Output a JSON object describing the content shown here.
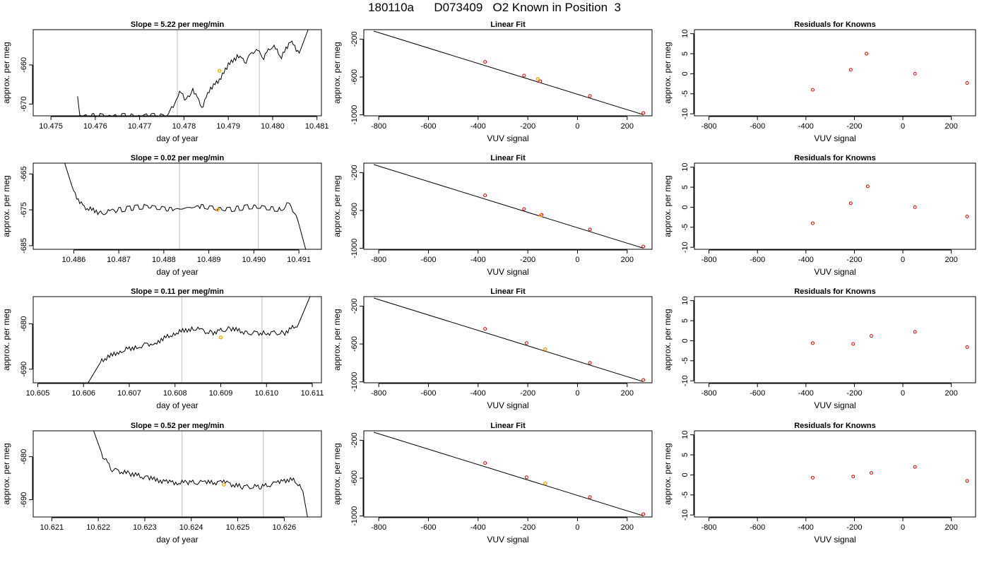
{
  "figure_title": "180110a      D073409   O2 Known in Position  3",
  "colors": {
    "line": "#000000",
    "highlight": "#ffa500",
    "residual": "#dd0000",
    "vline": "#c8c8c8"
  },
  "chart_data": [
    {
      "type": "line",
      "title": "Slope =  5.22  per meg/min",
      "xlabel": "day of year",
      "ylabel": "approx. per meg",
      "xlim": [
        10.4746,
        10.4811
      ],
      "ylim": [
        -673,
        -651
      ],
      "xticks": [
        "10.475",
        "10.476",
        "10.477",
        "10.478",
        "10.479",
        "10.480",
        "10.481"
      ],
      "yticks": [
        "-670",
        "-660"
      ],
      "vlines": [
        10.47785,
        10.4797
      ],
      "highlight_point": {
        "x": 10.4788,
        "y": -661.5
      },
      "series_points": [
        [
          10.4756,
          -668
        ],
        [
          10.47565,
          -673
        ],
        [
          10.47765,
          -673
        ],
        [
          10.4779,
          -667
        ],
        [
          10.47805,
          -669
        ],
        [
          10.4782,
          -666
        ],
        [
          10.4784,
          -671
        ],
        [
          10.4786,
          -666
        ],
        [
          10.4788,
          -664
        ],
        [
          10.479,
          -660
        ],
        [
          10.4792,
          -658
        ],
        [
          10.4794,
          -659
        ],
        [
          10.4796,
          -656
        ],
        [
          10.4798,
          -658
        ],
        [
          10.48,
          -655
        ],
        [
          10.4802,
          -658
        ],
        [
          10.4804,
          -654
        ],
        [
          10.4806,
          -657
        ],
        [
          10.4808,
          -651
        ]
      ]
    },
    {
      "type": "line",
      "title": "Slope =  0.02  per meg/min",
      "xlabel": "day of year",
      "ylabel": "approx. per meg",
      "xlim": [
        10.4851,
        10.4915
      ],
      "ylim": [
        -686,
        -662
      ],
      "xticks": [
        "10.486",
        "10.487",
        "10.488",
        "10.489",
        "10.490",
        "10.491"
      ],
      "yticks": [
        "-685",
        "-675",
        "-665"
      ],
      "vlines": [
        10.48835,
        10.4901
      ],
      "highlight_point": {
        "x": 10.4892,
        "y": -675
      },
      "series_points": [
        [
          10.4858,
          -662
        ],
        [
          10.486,
          -670
        ],
        [
          10.4862,
          -674
        ],
        [
          10.4866,
          -676
        ],
        [
          10.487,
          -675
        ],
        [
          10.4876,
          -674
        ],
        [
          10.4882,
          -675
        ],
        [
          10.4888,
          -674
        ],
        [
          10.4894,
          -675
        ],
        [
          10.49,
          -674
        ],
        [
          10.4906,
          -675
        ],
        [
          10.4908,
          -673
        ],
        [
          10.491,
          -679
        ],
        [
          10.49115,
          -686
        ]
      ]
    },
    {
      "type": "line",
      "title": "Slope =  0.11  per meg/min",
      "xlabel": "day of year",
      "ylabel": "approx. per meg",
      "xlim": [
        10.6049,
        10.6112
      ],
      "ylim": [
        -693,
        -674
      ],
      "xticks": [
        "10.605",
        "10.606",
        "10.607",
        "10.608",
        "10.609",
        "10.610",
        "10.611"
      ],
      "yticks": [
        "-690",
        "-680"
      ],
      "vlines": [
        10.60815,
        10.6099
      ],
      "highlight_point": {
        "x": 10.609,
        "y": -683
      },
      "series_points": [
        [
          10.6061,
          -693
        ],
        [
          10.6064,
          -688
        ],
        [
          10.6068,
          -686
        ],
        [
          10.6072,
          -685
        ],
        [
          10.6076,
          -684
        ],
        [
          10.608,
          -682
        ],
        [
          10.6084,
          -681
        ],
        [
          10.6088,
          -682
        ],
        [
          10.6092,
          -681
        ],
        [
          10.6096,
          -682
        ],
        [
          10.61,
          -682
        ],
        [
          10.6104,
          -682
        ],
        [
          10.6107,
          -680
        ],
        [
          10.61095,
          -674
        ]
      ]
    },
    {
      "type": "line",
      "title": "Slope =  0.52  per meg/min",
      "xlabel": "day of year",
      "ylabel": "approx. per meg",
      "xlim": [
        10.6206,
        10.6268
      ],
      "ylim": [
        -694,
        -674
      ],
      "xticks": [
        "10.621",
        "10.622",
        "10.623",
        "10.624",
        "10.625",
        "10.626"
      ],
      "yticks": [
        "-690",
        "-680"
      ],
      "vlines": [
        10.6238,
        10.62555
      ],
      "highlight_point": {
        "x": 10.6247,
        "y": -686.5
      },
      "series_points": [
        [
          10.6219,
          -674
        ],
        [
          10.6221,
          -680
        ],
        [
          10.6223,
          -683
        ],
        [
          10.6227,
          -684
        ],
        [
          10.6231,
          -685
        ],
        [
          10.6235,
          -686
        ],
        [
          10.6239,
          -686
        ],
        [
          10.6243,
          -686
        ],
        [
          10.6247,
          -686
        ],
        [
          10.6251,
          -687
        ],
        [
          10.6255,
          -687
        ],
        [
          10.6259,
          -686
        ],
        [
          10.6262,
          -685
        ],
        [
          10.6264,
          -688
        ],
        [
          10.6265,
          -694
        ]
      ]
    },
    {
      "type": "scatter",
      "title": "Linear Fit",
      "xlabel": "VUV signal",
      "ylabel": "approx. per meg",
      "xlim": [
        -860,
        300
      ],
      "ylim": [
        -1010,
        -100
      ],
      "xticks": [
        -800,
        -600,
        -400,
        -200,
        0,
        200
      ],
      "yticks": [
        -1000,
        -600,
        -200
      ],
      "fit_line": {
        "x": [
          -820,
          265
        ],
        "y": [
          -115,
          -998
        ]
      },
      "points": {
        "x": [
          -372,
          -215,
          -150,
          50,
          265
        ],
        "y": [
          -440,
          -585,
          -645,
          -800,
          -980
        ]
      },
      "highlight_point": {
        "x": -160,
        "y": -620
      }
    },
    {
      "type": "scatter",
      "title": "Residuals for Knowns",
      "xlabel": "VUV signal",
      "ylabel": "approx. per meg",
      "xlim": [
        -860,
        300
      ],
      "ylim": [
        -10.5,
        11
      ],
      "xticks": [
        -800,
        -600,
        -400,
        -200,
        0,
        200
      ],
      "yticks": [
        -10,
        -5,
        0,
        5,
        10
      ],
      "points": {
        "x": [
          -372,
          -215,
          -150,
          50,
          265
        ],
        "y": [
          -4,
          1,
          5,
          0,
          -2.3
        ]
      }
    },
    {
      "type": "scatter",
      "title": "Linear Fit",
      "xlabel": "VUV signal",
      "ylabel": "approx. per meg",
      "xlim": [
        -860,
        300
      ],
      "ylim": [
        -1010,
        -100
      ],
      "xticks": [
        -800,
        -600,
        -400,
        -200,
        0,
        200
      ],
      "yticks": [
        -1000,
        -600,
        -200
      ],
      "fit_line": {
        "x": [
          -820,
          265
        ],
        "y": [
          -115,
          -998
        ]
      },
      "points": {
        "x": [
          -372,
          -215,
          -145,
          50,
          265
        ],
        "y": [
          -440,
          -585,
          -645,
          -800,
          -980
        ]
      },
      "highlight_point": {
        "x": -148,
        "y": -650
      }
    },
    {
      "type": "scatter",
      "title": "Residuals for Knowns",
      "xlabel": "VUV signal",
      "ylabel": "approx. per meg",
      "xlim": [
        -860,
        300
      ],
      "ylim": [
        -10.5,
        11
      ],
      "xticks": [
        -800,
        -600,
        -400,
        -200,
        0,
        200
      ],
      "yticks": [
        -10,
        -5,
        0,
        5,
        10
      ],
      "points": {
        "x": [
          -372,
          -215,
          -145,
          50,
          265
        ],
        "y": [
          -4,
          1,
          5.2,
          0,
          -2.3
        ]
      }
    },
    {
      "type": "scatter",
      "title": "Linear Fit",
      "xlabel": "VUV signal",
      "ylabel": "approx. per meg",
      "xlim": [
        -860,
        300
      ],
      "ylim": [
        -1010,
        -100
      ],
      "xticks": [
        -800,
        -600,
        -400,
        -200,
        0,
        200
      ],
      "yticks": [
        -1000,
        -600,
        -200
      ],
      "fit_line": {
        "x": [
          -820,
          265
        ],
        "y": [
          -115,
          -998
        ]
      },
      "points": {
        "x": [
          -372,
          -205,
          -130,
          50,
          265
        ],
        "y": [
          -440,
          -590,
          -655,
          -800,
          -980
        ]
      },
      "highlight_point": {
        "x": -130,
        "y": -655
      }
    },
    {
      "type": "scatter",
      "title": "Residuals for Knowns",
      "xlabel": "VUV signal",
      "ylabel": "approx. per meg",
      "xlim": [
        -860,
        300
      ],
      "ylim": [
        -10.5,
        11
      ],
      "xticks": [
        -800,
        -600,
        -400,
        -200,
        0,
        200
      ],
      "yticks": [
        -10,
        -5,
        0,
        5,
        10
      ],
      "points": {
        "x": [
          -372,
          -205,
          -130,
          50,
          265
        ],
        "y": [
          -0.6,
          -0.8,
          1.2,
          2.2,
          -1.6
        ]
      }
    },
    {
      "type": "scatter",
      "title": "Linear Fit",
      "xlabel": "VUV signal",
      "ylabel": "approx. per meg",
      "xlim": [
        -860,
        300
      ],
      "ylim": [
        -1010,
        -100
      ],
      "xticks": [
        -800,
        -600,
        -400,
        -200,
        0,
        200
      ],
      "yticks": [
        -1000,
        -600,
        -200
      ],
      "fit_line": {
        "x": [
          -820,
          265
        ],
        "y": [
          -115,
          -998
        ]
      },
      "points": {
        "x": [
          -372,
          -205,
          -130,
          50,
          265
        ],
        "y": [
          -440,
          -590,
          -655,
          -800,
          -980
        ]
      },
      "highlight_point": {
        "x": -130,
        "y": -655
      }
    },
    {
      "type": "scatter",
      "title": "Residuals for Knowns",
      "xlabel": "VUV signal",
      "ylabel": "approx. per meg",
      "xlim": [
        -860,
        300
      ],
      "ylim": [
        -10.5,
        11
      ],
      "xticks": [
        -800,
        -600,
        -400,
        -200,
        0,
        200
      ],
      "yticks": [
        -10,
        -5,
        0,
        5,
        10
      ],
      "points": {
        "x": [
          -372,
          -205,
          -130,
          50,
          265
        ],
        "y": [
          -0.7,
          -0.4,
          0.5,
          2.0,
          -1.5
        ]
      }
    }
  ]
}
